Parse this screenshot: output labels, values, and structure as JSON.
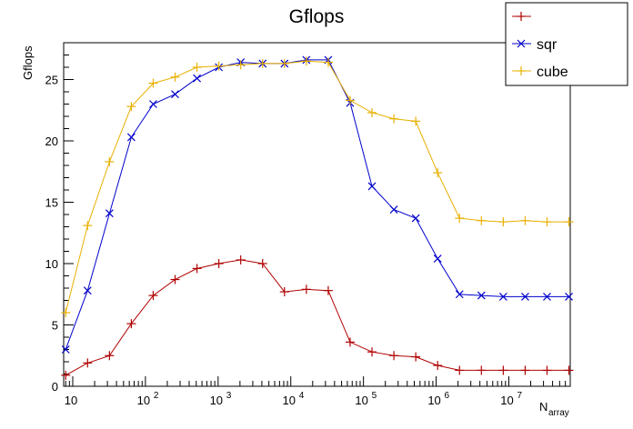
{
  "chart_data": {
    "type": "line",
    "title": "Gflops",
    "ylabel": "Gflops",
    "xlabel_main": "N",
    "xlabel_sub": "array",
    "x_scale": "log",
    "xlim": [
      7.5,
      70000000
    ],
    "ylim": [
      0,
      28
    ],
    "y_ticks": [
      0,
      5,
      10,
      15,
      20,
      25
    ],
    "x_ticks": [
      10,
      100,
      1000,
      10000,
      100000,
      1000000,
      10000000
    ],
    "x_tick_labels": [
      {
        "base": "10",
        "exp": ""
      },
      {
        "base": "10",
        "exp": "2"
      },
      {
        "base": "10",
        "exp": "3"
      },
      {
        "base": "10",
        "exp": "4"
      },
      {
        "base": "10",
        "exp": "5"
      },
      {
        "base": "10",
        "exp": "6"
      },
      {
        "base": "10",
        "exp": "7"
      }
    ],
    "grid": false,
    "legend_position": "top-right",
    "x": [
      8,
      16,
      32,
      64,
      128,
      256,
      512,
      1024,
      2048,
      4096,
      8192,
      16384,
      32768,
      65536,
      131072,
      262144,
      524288,
      1048576,
      2097152,
      4194304,
      8388608,
      16777216,
      33554432,
      67108864
    ],
    "series": [
      {
        "name": "",
        "color": "#b00000",
        "marker": "plus",
        "values": [
          0.9,
          1.9,
          2.5,
          5.1,
          7.4,
          8.7,
          9.6,
          10.0,
          10.3,
          10.0,
          7.7,
          7.9,
          7.8,
          3.6,
          2.8,
          2.5,
          2.4,
          1.7,
          1.3,
          1.3,
          1.3,
          1.3,
          1.3,
          1.3
        ]
      },
      {
        "name": "sqr",
        "color": "#0000cc",
        "marker": "cross",
        "values": [
          3.0,
          7.8,
          14.1,
          20.3,
          23.0,
          23.8,
          25.1,
          26.0,
          26.4,
          26.3,
          26.3,
          26.6,
          26.6,
          23.1,
          16.3,
          14.4,
          13.7,
          10.4,
          7.5,
          7.4,
          7.3,
          7.3,
          7.3,
          7.3
        ]
      },
      {
        "name": "cube",
        "color": "#e8b000",
        "marker": "plus",
        "values": [
          6.0,
          13.1,
          18.3,
          22.8,
          24.7,
          25.2,
          26.0,
          26.1,
          26.2,
          26.3,
          26.3,
          26.5,
          26.4,
          23.3,
          22.3,
          21.8,
          21.6,
          17.4,
          13.7,
          13.5,
          13.4,
          13.5,
          13.4,
          13.4
        ]
      }
    ]
  }
}
